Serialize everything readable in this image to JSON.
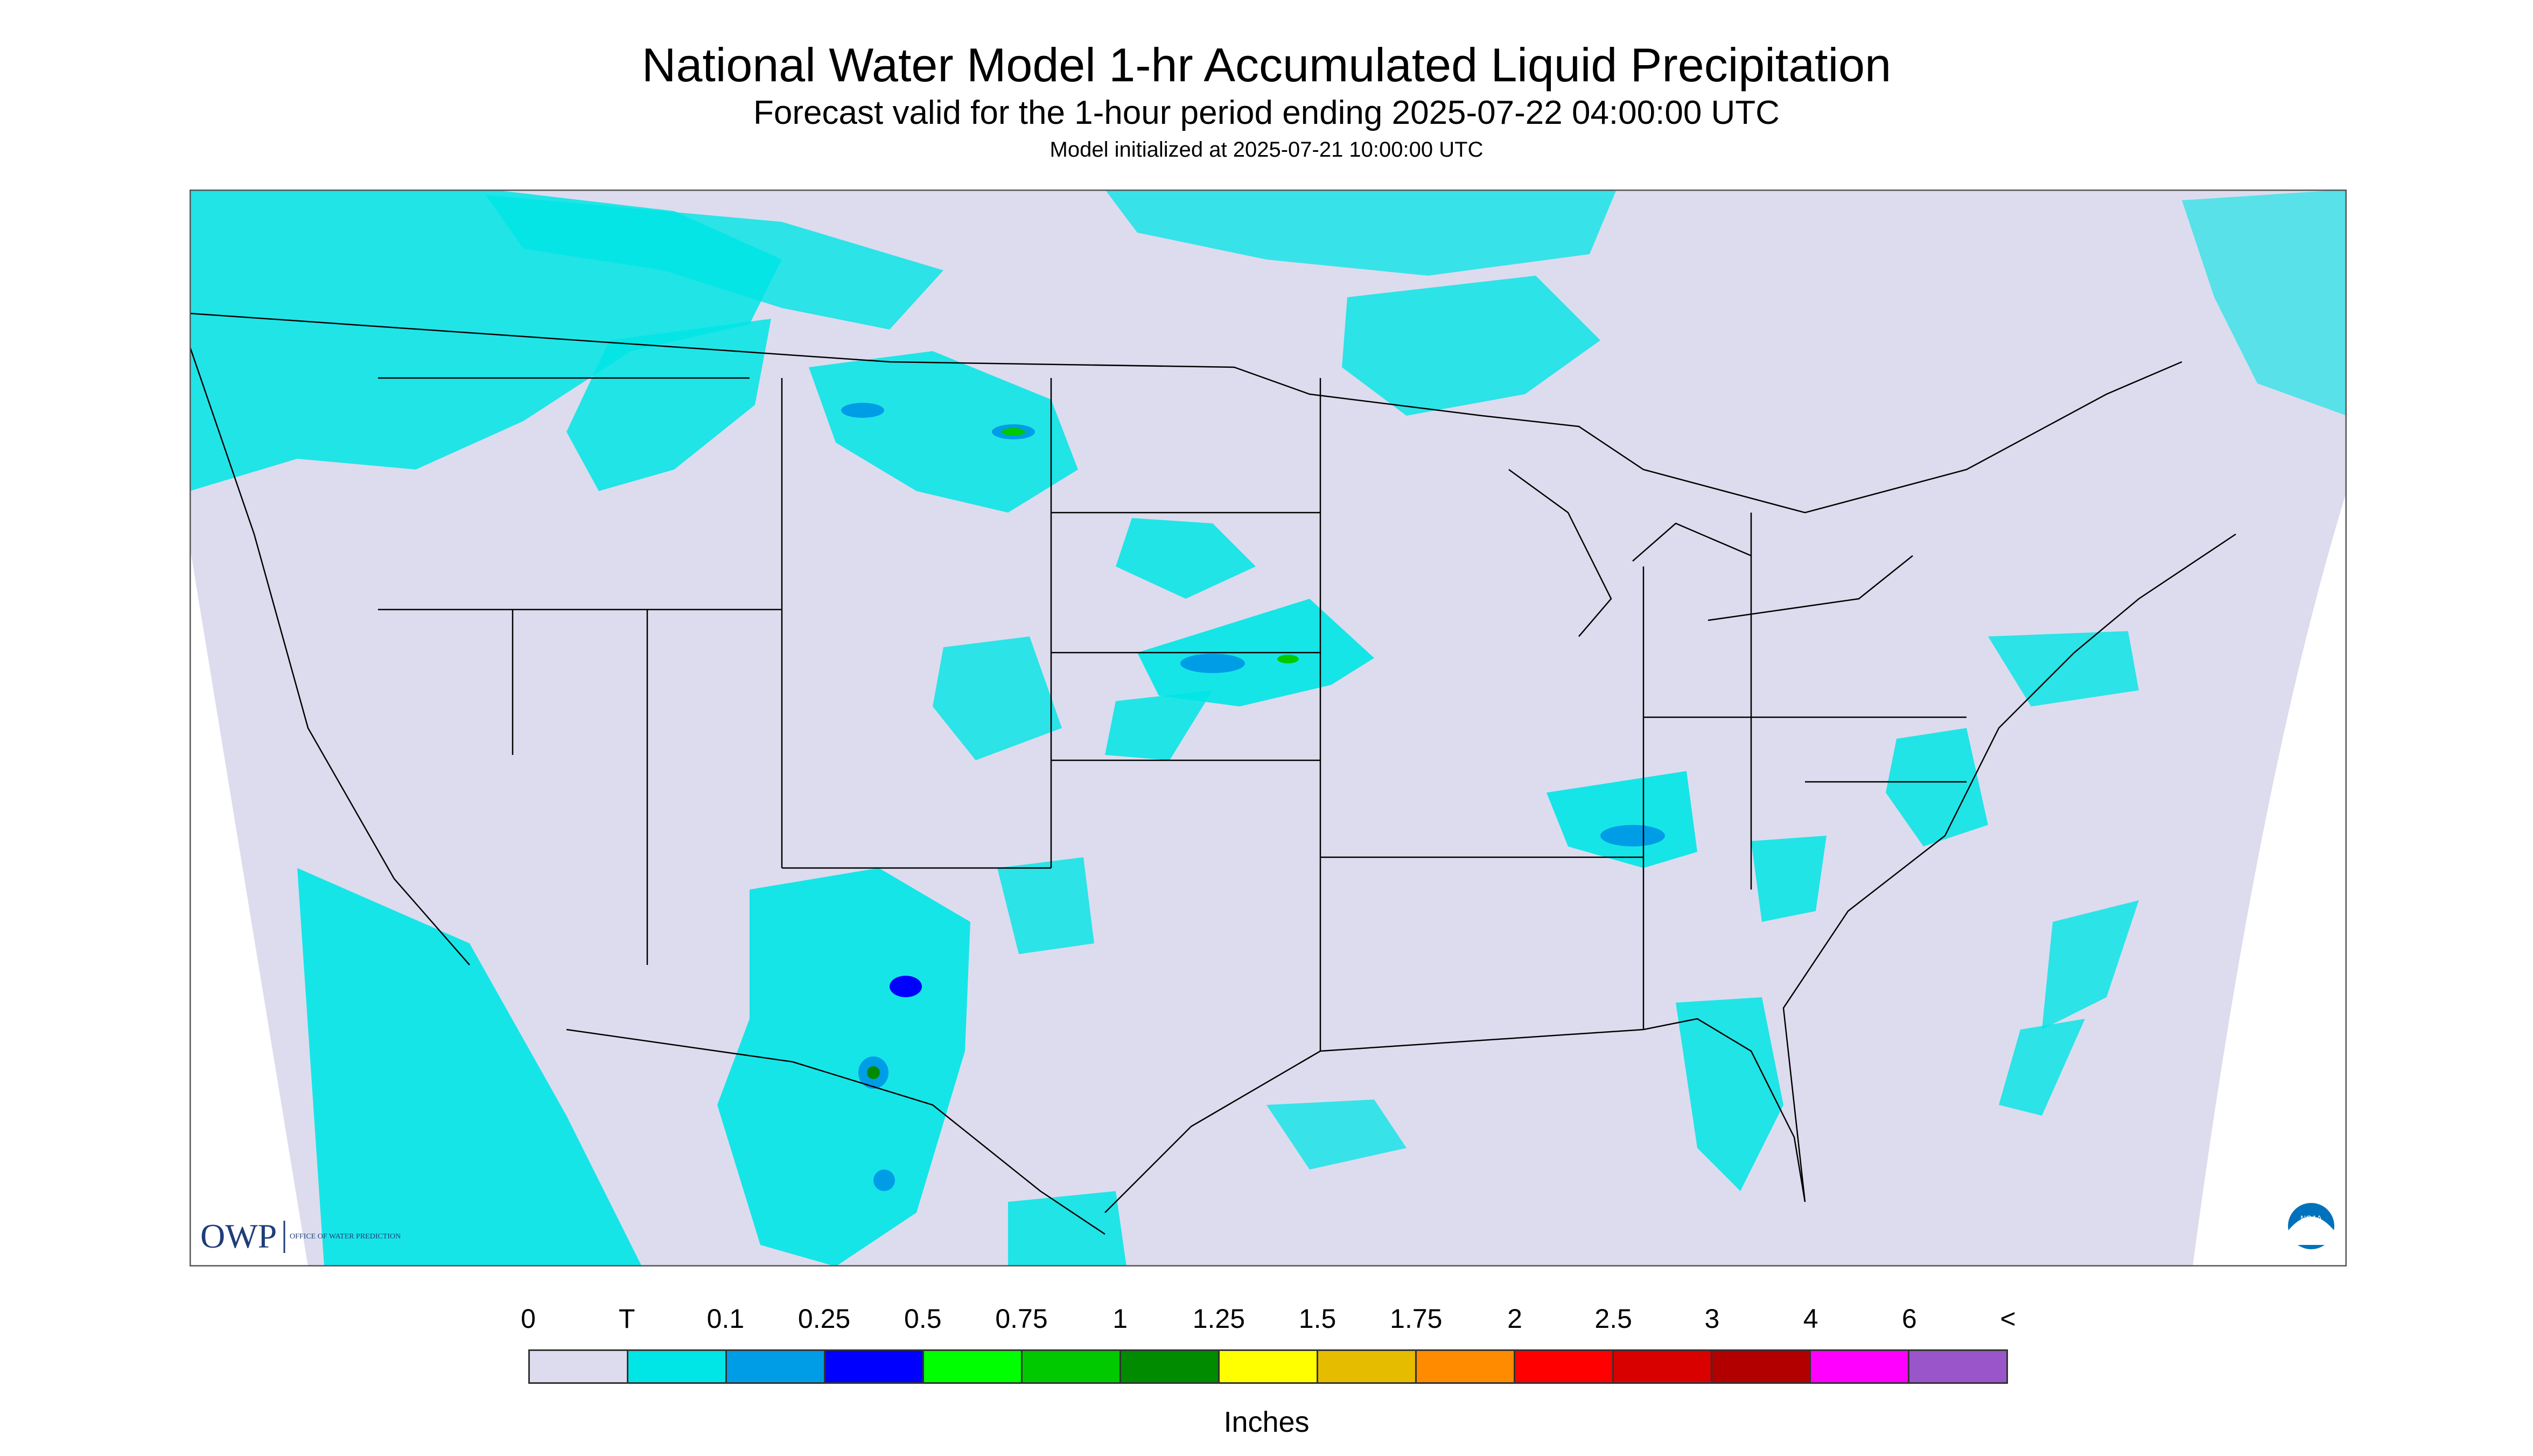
{
  "header": {
    "title": "National Water Model 1-hr Accumulated Liquid Precipitation",
    "subtitle": "Forecast valid for the 1-hour period ending 2025-07-22 04:00:00 UTC",
    "init": "Model initialized at 2025-07-21 10:00:00 UTC"
  },
  "map": {
    "background_color": "#dcdcee",
    "land_no_data_color": "#ffffff",
    "boundary_color": "#000000",
    "logos": {
      "left": "OWP",
      "left_sub": "OFFICE OF WATER PREDICTION",
      "right": "NOAA"
    }
  },
  "legend": {
    "labels": [
      "0",
      "T",
      "0.1",
      "0.25",
      "0.5",
      "0.75",
      "1",
      "1.25",
      "1.5",
      "1.75",
      "2",
      "2.5",
      "3",
      "4",
      "6",
      "<"
    ],
    "colors": [
      "#dcdcee",
      "#00e5e5",
      "#009de7",
      "#0000ff",
      "#00ff00",
      "#00c900",
      "#008b00",
      "#ffff00",
      "#e6bc00",
      "#ff8c00",
      "#ff0000",
      "#d90000",
      "#b20000",
      "#ff00ff",
      "#9955c9"
    ],
    "units": "Inches"
  }
}
